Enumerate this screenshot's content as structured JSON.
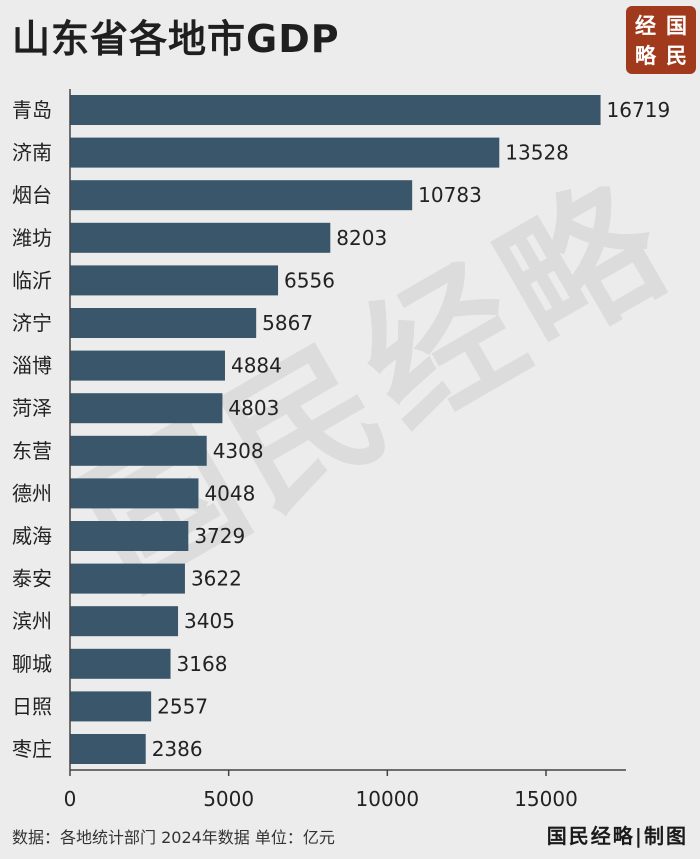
{
  "header": {
    "title": "山东省各地市GDP"
  },
  "logo": {
    "chars": [
      "经",
      "国",
      "略",
      "民"
    ]
  },
  "watermark": {
    "text": "国民经略"
  },
  "footer": {
    "source": "数据：各地统计部门 2024年数据 单位：亿元",
    "brand": "国民经略|制图"
  },
  "colors": {
    "bar": "#3a566b",
    "logo_bg": "#a1391c",
    "background": "#ececec"
  },
  "chart_data": {
    "type": "bar",
    "orientation": "horizontal",
    "title": "山东省各地市GDP",
    "categories": [
      "青岛",
      "济南",
      "烟台",
      "潍坊",
      "临沂",
      "济宁",
      "淄博",
      "菏泽",
      "东营",
      "德州",
      "威海",
      "泰安",
      "滨州",
      "聊城",
      "日照",
      "枣庄"
    ],
    "values": [
      16719,
      13528,
      10783,
      8203,
      6556,
      5867,
      4884,
      4803,
      4308,
      4048,
      3729,
      3622,
      3405,
      3168,
      2557,
      2386
    ],
    "xlim": [
      0,
      17500
    ],
    "xticks": [
      0,
      5000,
      10000,
      15000
    ],
    "unit": "亿元",
    "grid": false,
    "data_labels": true
  }
}
